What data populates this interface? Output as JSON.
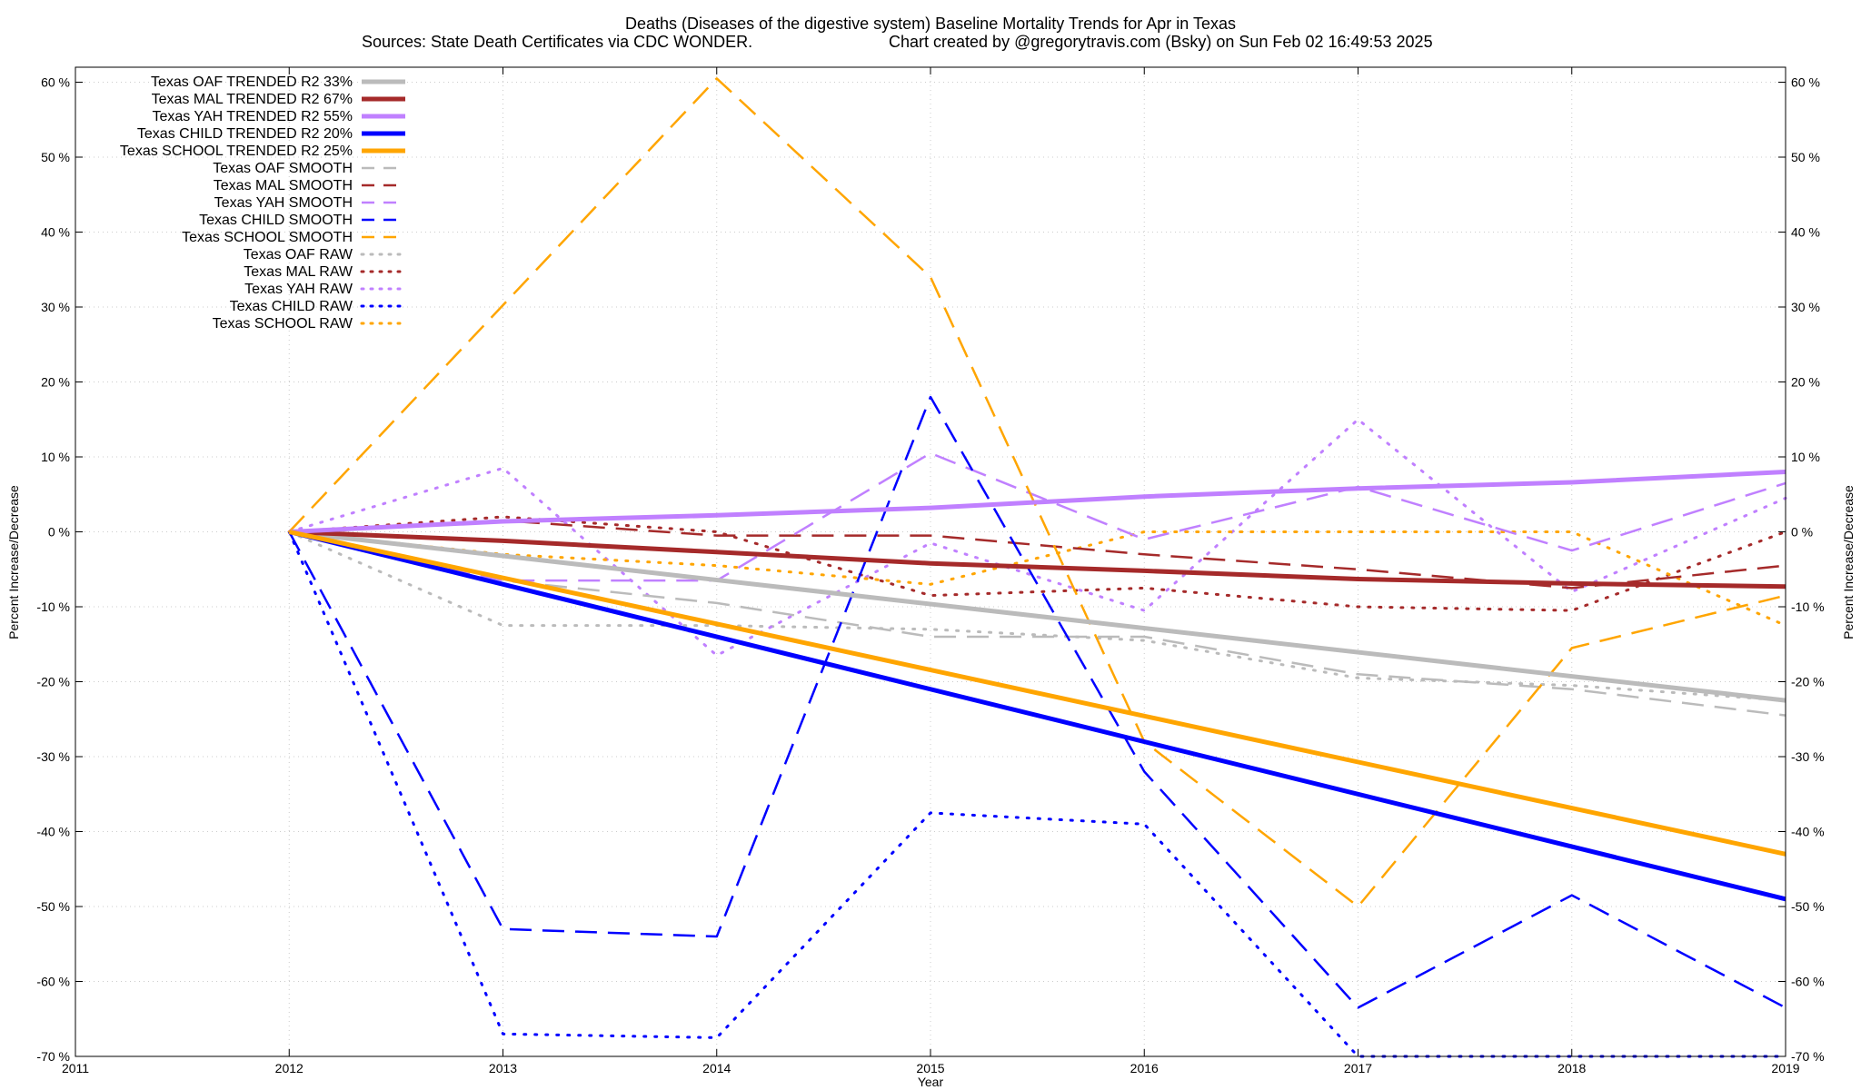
{
  "chart_data": {
    "type": "line",
    "title": "Deaths (Diseases of the digestive system)  Baseline Mortality Trends for Apr in Texas",
    "subtitle_left": "Sources: State Death Certificates via CDC WONDER.",
    "subtitle_right": "Chart created by @gregorytravis.com (Bsky) on Sun Feb 02 16:49:53 2025",
    "xlabel": "Year",
    "ylabel_left": "Percent Increase/Decrease",
    "ylabel_right": "Percent Increase/Decrease",
    "xlim": [
      2011,
      2019
    ],
    "ylim": [
      -70,
      62
    ],
    "x_ticks": [
      2011,
      2012,
      2013,
      2014,
      2015,
      2016,
      2017,
      2018,
      2019
    ],
    "y_ticks": [
      {
        "value": 60,
        "label": "60 %"
      },
      {
        "value": 50,
        "label": "50 %"
      },
      {
        "value": 40,
        "label": "40 %"
      },
      {
        "value": 30,
        "label": "30 %"
      },
      {
        "value": 20,
        "label": "20 %"
      },
      {
        "value": 10,
        "label": "10 %"
      },
      {
        "value": 0,
        "label": "0 %"
      },
      {
        "value": -10,
        "label": "-10 %"
      },
      {
        "value": -20,
        "label": "-20 %"
      },
      {
        "value": -30,
        "label": "-30 %"
      },
      {
        "value": -40,
        "label": "-40 %"
      },
      {
        "value": -50,
        "label": "-50 %"
      },
      {
        "value": -60,
        "label": "-60 %"
      },
      {
        "value": -70,
        "label": "-70 %"
      }
    ],
    "grid": true,
    "legend_position": "top-left",
    "colors": {
      "OAF": "#bbbbbb",
      "MAL": "#a52a2a",
      "YAH": "#c080ff",
      "CHILD": "#0000ff",
      "SCHOOL": "#ffa500"
    },
    "series": [
      {
        "name": "Texas OAF TRENDED R2  33%",
        "group": "OAF",
        "style": "trend",
        "x": [
          2012,
          2019
        ],
        "y": [
          0,
          -22.5
        ]
      },
      {
        "name": "Texas MAL TRENDED R2  67%",
        "group": "MAL",
        "style": "trend",
        "x": [
          2012,
          2013,
          2014,
          2015,
          2016,
          2017,
          2018,
          2019
        ],
        "y": [
          0,
          -1.2,
          -2.7,
          -4.2,
          -5.2,
          -6.3,
          -6.9,
          -7.3
        ]
      },
      {
        "name": "Texas YAH TRENDED R2  55%",
        "group": "YAH",
        "style": "trend",
        "x": [
          2012,
          2013,
          2014,
          2015,
          2016,
          2017,
          2018,
          2019
        ],
        "y": [
          0,
          1.4,
          2.2,
          3.2,
          4.7,
          5.8,
          6.6,
          8.0
        ]
      },
      {
        "name": "Texas CHILD TRENDED R2  20%",
        "group": "CHILD",
        "style": "trend",
        "x": [
          2012,
          2019
        ],
        "y": [
          0,
          -49
        ]
      },
      {
        "name": "Texas SCHOOL TRENDED R2  25%",
        "group": "SCHOOL",
        "style": "trend",
        "x": [
          2012,
          2019
        ],
        "y": [
          0,
          -43
        ]
      },
      {
        "name": "Texas OAF SMOOTH",
        "group": "OAF",
        "style": "smooth",
        "x": [
          2012,
          2013,
          2014,
          2015,
          2016,
          2017,
          2018,
          2019
        ],
        "y": [
          0,
          -6.5,
          -9.5,
          -14,
          -14,
          -19,
          -21,
          -24.5
        ]
      },
      {
        "name": "Texas MAL SMOOTH",
        "group": "MAL",
        "style": "smooth",
        "x": [
          2012,
          2013,
          2014,
          2015,
          2016,
          2017,
          2018,
          2019
        ],
        "y": [
          0,
          1.5,
          -0.5,
          -0.5,
          -3,
          -5,
          -7.5,
          -4.5
        ]
      },
      {
        "name": "Texas YAH SMOOTH",
        "group": "YAH",
        "style": "smooth",
        "x": [
          2012,
          2013,
          2014,
          2015,
          2016,
          2017,
          2018,
          2019
        ],
        "y": [
          0,
          -6.5,
          -6.5,
          10.5,
          -1,
          6,
          -2.5,
          6.5
        ]
      },
      {
        "name": "Texas CHILD SMOOTH",
        "group": "CHILD",
        "style": "smooth",
        "x": [
          2012,
          2013,
          2014,
          2015,
          2016,
          2017,
          2018,
          2019
        ],
        "y": [
          0,
          -53,
          -54,
          18,
          -32,
          -63.5,
          -48.5,
          -63.5
        ]
      },
      {
        "name": "Texas SCHOOL SMOOTH",
        "group": "SCHOOL",
        "style": "smooth",
        "x": [
          2012,
          2014,
          2015,
          2016,
          2017,
          2018,
          2019
        ],
        "y": [
          0,
          60.5,
          34,
          -28,
          -50,
          -15.5,
          -8.5
        ]
      },
      {
        "name": "Texas OAF RAW",
        "group": "OAF",
        "style": "raw",
        "x": [
          2012,
          2013,
          2014,
          2015,
          2016,
          2017,
          2018,
          2019
        ],
        "y": [
          0,
          -12.5,
          -12.5,
          -13,
          -14.5,
          -19.5,
          -20.5,
          -22.5
        ]
      },
      {
        "name": "Texas MAL RAW",
        "group": "MAL",
        "style": "raw",
        "x": [
          2012,
          2013,
          2014,
          2015,
          2016,
          2017,
          2018,
          2019
        ],
        "y": [
          0,
          2,
          0,
          -8.5,
          -7.5,
          -10,
          -10.5,
          0
        ]
      },
      {
        "name": "Texas YAH RAW",
        "group": "YAH",
        "style": "raw",
        "x": [
          2012,
          2013,
          2014,
          2015,
          2016,
          2017,
          2018,
          2019
        ],
        "y": [
          0,
          8.5,
          -16.5,
          -1.5,
          -10.5,
          15,
          -8,
          4.5
        ]
      },
      {
        "name": "Texas CHILD RAW",
        "group": "CHILD",
        "style": "raw",
        "x": [
          2012,
          2013,
          2014,
          2015,
          2016,
          2017,
          2018,
          2019
        ],
        "y": [
          0,
          -67,
          -67.5,
          -37.5,
          -39,
          -70,
          -70,
          -70
        ]
      },
      {
        "name": "Texas SCHOOL RAW",
        "group": "SCHOOL",
        "style": "raw",
        "x": [
          2012,
          2013,
          2014,
          2015,
          2016,
          2017,
          2018,
          2019
        ],
        "y": [
          0,
          -3,
          -4.5,
          -7,
          0,
          0,
          0,
          -12.5
        ]
      }
    ]
  }
}
